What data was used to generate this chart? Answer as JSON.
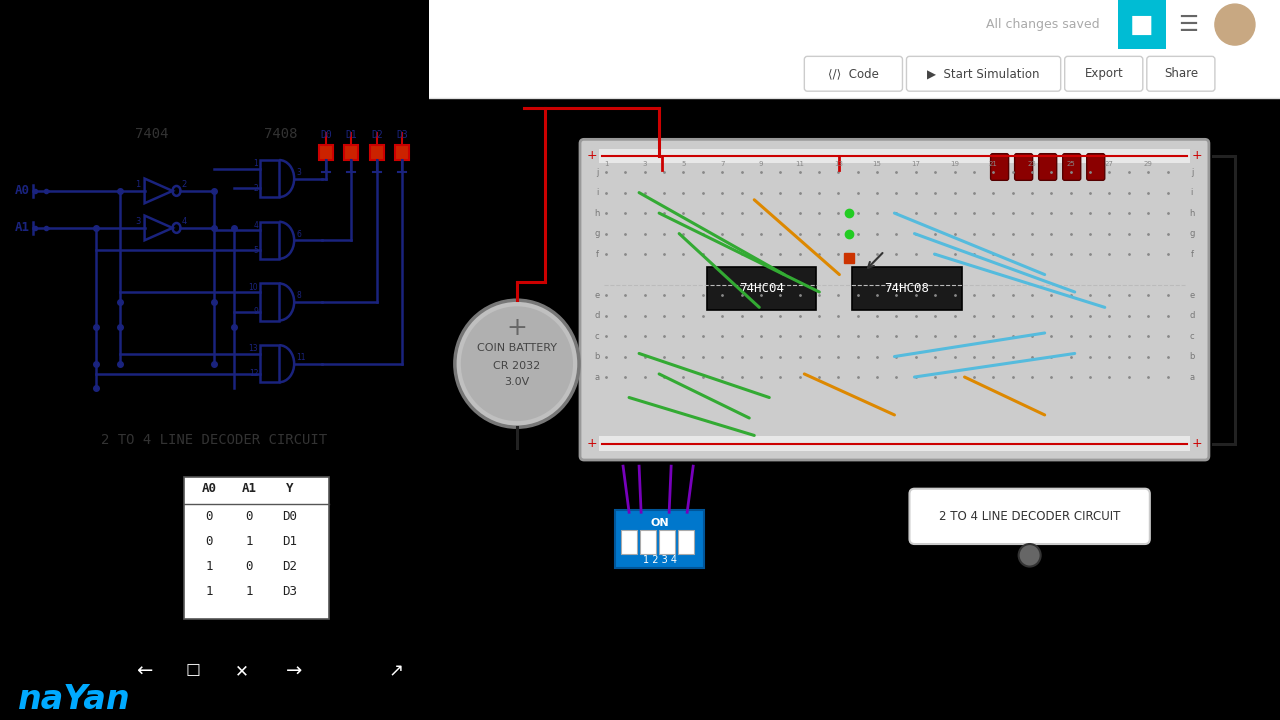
{
  "bg_left": "#f0f0f0",
  "bg_right": "#e0e0e0",
  "bg_black": "#000000",
  "circuit_title": "2 TO 4 LINE DECODER CIRCUIT",
  "truth_table": {
    "headers": [
      "A0",
      "A1",
      "Y"
    ],
    "rows": [
      [
        "0",
        "0",
        "D0"
      ],
      [
        "0",
        "1",
        "D1"
      ],
      [
        "1",
        "0",
        "D2"
      ],
      [
        "1",
        "1",
        "D3"
      ]
    ]
  },
  "chip_label1": "7404",
  "chip_label2": "7408",
  "nayan_text": "naYan",
  "nayan_color": "#00aaff",
  "all_changes_saved": "All changes saved",
  "coin_battery_text": [
    "COIN BATTERY",
    "CR 2032",
    "3.0V"
  ],
  "chip74hc04": "74HC04",
  "chip74hc08": "74HC08",
  "label_2to4": "2 TO 4 LINE DECODER CIRCUIT",
  "on_label": "ON",
  "dip_numbers": "1 2 3 4",
  "wire_color": "#1a237e",
  "lw": 1.8
}
